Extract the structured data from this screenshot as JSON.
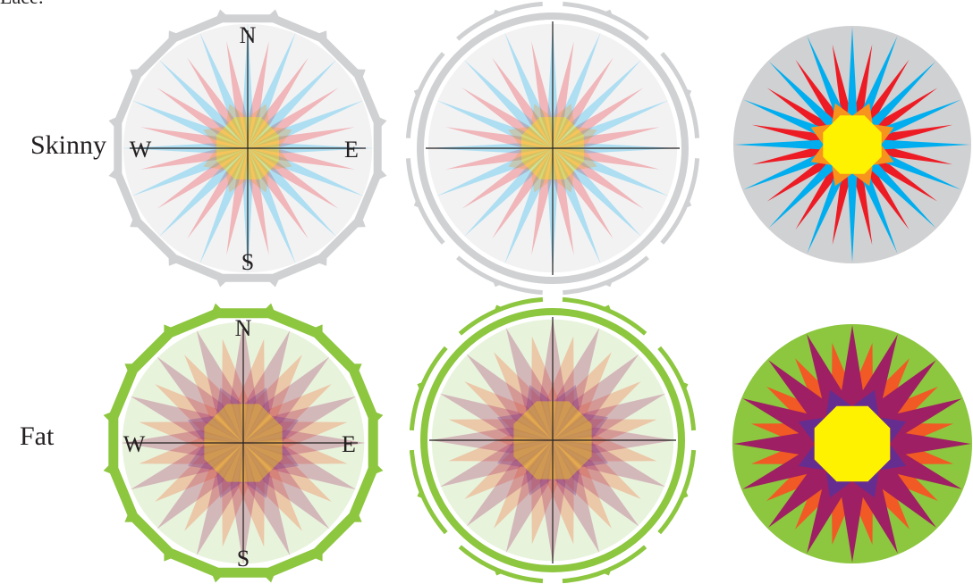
{
  "top_partial_label": "Lace:",
  "rows": [
    {
      "label": "Skinny",
      "colors": {
        "ring": "#d0d1d3",
        "bg": "#f2f2f3",
        "long_points": "#00aeef",
        "mid_points": "#ed1c24",
        "inner_diamonds": "#f7941d",
        "center": "#fff200",
        "solid_bg": "#d0d1d3",
        "accent": "#8dc63f"
      }
    },
    {
      "label": "Fat",
      "colors": {
        "ring": "#8dc63f",
        "bg": "#e8f3dc",
        "long_points": "#9e1f63",
        "mid_points": "#f15a24",
        "inner_diamonds": "#662d91",
        "center": "#fff200",
        "solid_bg": "#8dc63f",
        "accent": "#8dc63f"
      }
    }
  ],
  "cardinals": {
    "north": "N",
    "east": "E",
    "south": "S",
    "west": "W"
  }
}
